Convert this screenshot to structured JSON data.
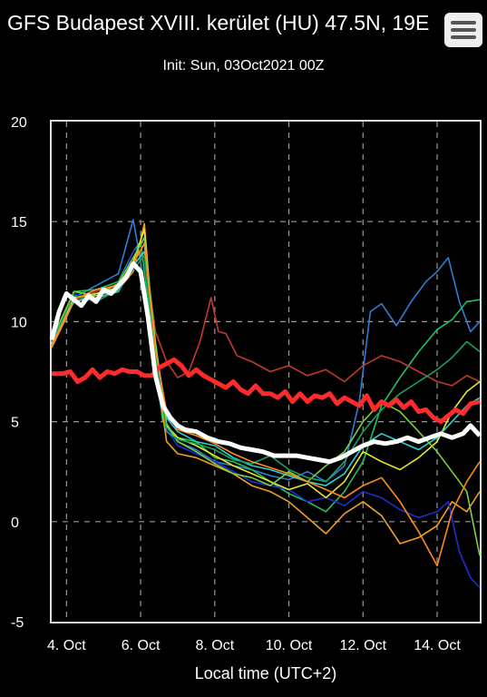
{
  "header": {
    "title": "GFS Budapest XVIII. kerület (HU) 47.5N, 19E",
    "init": "Init: Sun, 03Oct2021 00Z",
    "menu_icon": "hamburger-menu-icon"
  },
  "chart_data": {
    "type": "line",
    "title": "GFS Budapest XVIII. kerület (HU) 47.5N, 19E",
    "subtitle": "Init: Sun, 03Oct2021 00Z",
    "xlabel": "Local time (UTC+2)",
    "ylabel": "",
    "ylim": [
      -5,
      20
    ],
    "xlim": [
      3.6,
      15.15
    ],
    "yticks": [
      -5,
      0,
      5,
      10,
      15,
      20
    ],
    "xticks": [
      {
        "x": 4,
        "label": "4. Oct"
      },
      {
        "x": 6,
        "label": "6. Oct"
      },
      {
        "x": 8,
        "label": "8. Oct"
      },
      {
        "x": 10,
        "label": "10. Oct"
      },
      {
        "x": 12,
        "label": "12. Oct"
      },
      {
        "x": 14,
        "label": "14. Oct"
      }
    ],
    "grid": true,
    "series": [
      {
        "color": "#ff2a2a",
        "x": [
          3.6,
          3.9,
          4.1,
          4.3,
          4.5,
          4.7,
          4.9,
          5.1,
          5.3,
          5.5,
          5.7,
          5.9,
          6.1,
          6.3,
          6.5,
          6.7,
          6.9,
          7.1,
          7.3,
          7.5,
          7.7,
          7.9,
          8.1,
          8.3,
          8.5,
          8.7,
          8.9,
          9.1,
          9.3,
          9.5,
          9.7,
          9.9,
          10.1,
          10.3,
          10.5,
          10.7,
          10.9,
          11.1,
          11.3,
          11.5,
          11.7,
          11.9,
          12.1,
          12.3,
          12.5,
          12.7,
          12.9,
          13.1,
          13.3,
          13.5,
          13.7,
          13.9,
          14.1,
          14.3,
          14.5,
          14.7,
          14.9,
          15.15
        ],
        "values": [
          7.4,
          7.4,
          7.5,
          7.0,
          7.2,
          7.6,
          7.2,
          7.5,
          7.4,
          7.6,
          7.5,
          7.5,
          7.3,
          7.3,
          7.7,
          7.9,
          8.1,
          7.8,
          7.3,
          7.6,
          7.3,
          7.1,
          6.9,
          6.7,
          7.0,
          6.6,
          6.4,
          6.8,
          6.4,
          6.4,
          6.2,
          6.5,
          6.0,
          6.4,
          6.0,
          6.3,
          6.2,
          6.4,
          5.9,
          6.2,
          6.0,
          5.8,
          6.3,
          5.6,
          6.0,
          5.8,
          6.1,
          5.7,
          6.0,
          5.5,
          5.6,
          5.2,
          5.0,
          5.3,
          5.6,
          5.4,
          5.9,
          6.0
        ]
      },
      {
        "color": "#ffffff",
        "x": [
          3.6,
          3.8,
          4.0,
          4.2,
          4.4,
          4.6,
          4.8,
          5.0,
          5.2,
          5.4,
          5.6,
          5.8,
          6.0,
          6.2,
          6.4,
          6.6,
          6.8,
          7.0,
          7.2,
          7.5,
          7.8,
          8.1,
          8.4,
          8.7,
          9.0,
          9.3,
          9.6,
          9.9,
          10.2,
          10.5,
          10.8,
          11.1,
          11.4,
          11.7,
          12.0,
          12.3,
          12.6,
          12.9,
          13.2,
          13.5,
          13.8,
          14.1,
          14.4,
          14.7,
          14.9,
          15.15
        ],
        "values": [
          9.1,
          10.5,
          11.4,
          11.1,
          10.8,
          11.3,
          11.0,
          11.6,
          11.4,
          11.8,
          12.2,
          12.9,
          12.5,
          10.2,
          7.3,
          5.8,
          5.2,
          4.8,
          4.6,
          4.5,
          4.2,
          4.0,
          3.9,
          3.7,
          3.6,
          3.5,
          3.3,
          3.3,
          3.3,
          3.2,
          3.1,
          3.0,
          3.2,
          3.5,
          3.8,
          4.0,
          3.9,
          4.0,
          4.2,
          4.0,
          4.2,
          4.4,
          4.2,
          4.4,
          4.8,
          4.3
        ]
      },
      {
        "color": "#2b7fd6",
        "x": [
          3.6,
          4.2,
          4.8,
          5.4,
          5.8,
          6.0,
          6.3,
          6.6,
          7.0,
          7.5,
          8.0,
          8.5,
          9.0,
          9.5,
          10.0,
          10.5,
          11.0,
          11.5,
          11.9,
          12.2,
          12.5,
          12.9,
          13.3,
          13.7,
          14.0,
          14.3,
          14.6,
          14.9,
          15.15
        ],
        "values": [
          9.0,
          11.2,
          11.8,
          12.4,
          15.1,
          13.0,
          9.0,
          5.0,
          4.0,
          3.6,
          3.0,
          2.8,
          2.6,
          2.3,
          2.1,
          2.5,
          2.0,
          2.8,
          6.0,
          10.5,
          10.9,
          9.8,
          11.0,
          12.0,
          12.5,
          13.2,
          11.0,
          9.5,
          10.0
        ]
      },
      {
        "color": "#20c060",
        "x": [
          3.6,
          4.2,
          4.8,
          5.4,
          5.8,
          6.0,
          6.3,
          6.6,
          7.0,
          7.5,
          8.0,
          8.5,
          9.0,
          9.5,
          10.0,
          10.5,
          11.0,
          11.5,
          12.0,
          12.5,
          13.0,
          13.5,
          14.0,
          14.4,
          14.8,
          15.15
        ],
        "values": [
          8.8,
          11.5,
          11.6,
          12.0,
          13.5,
          14.0,
          9.5,
          5.0,
          4.2,
          4.0,
          3.2,
          3.0,
          2.6,
          2.0,
          1.4,
          1.0,
          0.5,
          1.5,
          3.0,
          5.8,
          7.2,
          8.5,
          9.6,
          10.1,
          11.0,
          11.1
        ]
      },
      {
        "color": "#f2a024",
        "x": [
          3.6,
          4.2,
          4.8,
          5.4,
          5.8,
          6.1,
          6.4,
          6.7,
          7.0,
          7.5,
          8.0,
          8.5,
          9.0,
          9.5,
          10.0,
          10.5,
          11.0,
          11.5,
          12.0,
          12.5,
          13.0,
          13.5,
          14.0,
          14.4,
          14.8,
          15.15
        ],
        "values": [
          8.7,
          11.0,
          11.3,
          11.6,
          12.5,
          14.9,
          8.0,
          4.0,
          3.4,
          3.2,
          2.8,
          2.4,
          1.8,
          1.5,
          1.0,
          0.2,
          -0.6,
          0.4,
          1.0,
          0.3,
          -1.1,
          -0.8,
          -0.2,
          1.0,
          0.5,
          1.5
        ]
      },
      {
        "color": "#1e2fd0",
        "x": [
          3.6,
          4.2,
          4.8,
          5.4,
          5.8,
          6.1,
          6.4,
          6.7,
          7.0,
          7.5,
          8.0,
          8.5,
          9.0,
          9.5,
          10.0,
          10.5,
          11.0,
          11.5,
          12.0,
          12.5,
          13.0,
          13.5,
          14.0,
          14.3,
          14.6,
          14.9,
          15.15
        ],
        "values": [
          9.0,
          11.4,
          11.0,
          11.8,
          13.5,
          14.0,
          8.5,
          4.6,
          3.8,
          3.4,
          3.0,
          2.5,
          2.0,
          1.8,
          1.6,
          1.0,
          1.2,
          0.8,
          1.5,
          1.2,
          0.6,
          0.2,
          0.5,
          1.0,
          -1.5,
          -2.8,
          -3.3
        ]
      },
      {
        "color": "#c13a2a",
        "x": [
          3.6,
          4.2,
          4.8,
          5.4,
          5.8,
          6.1,
          6.4,
          6.7,
          7.0,
          7.3,
          7.6,
          7.9,
          8.1,
          8.3,
          8.6,
          9.0,
          9.5,
          10.0,
          10.5,
          11.0,
          11.5,
          12.0,
          12.5,
          13.0,
          13.5,
          14.0,
          14.4,
          14.8,
          15.15
        ],
        "values": [
          9.0,
          11.0,
          11.5,
          11.9,
          12.8,
          13.5,
          9.5,
          8.0,
          7.2,
          7.5,
          9.0,
          11.2,
          9.5,
          9.4,
          8.3,
          8.0,
          7.5,
          7.8,
          7.3,
          7.6,
          7.0,
          7.8,
          8.3,
          8.0,
          7.5,
          7.0,
          6.8,
          7.3,
          7.0
        ]
      },
      {
        "color": "#e8e82a",
        "x": [
          3.6,
          4.2,
          4.8,
          5.4,
          5.8,
          6.1,
          6.4,
          6.7,
          7.0,
          7.5,
          8.0,
          8.5,
          9.0,
          9.5,
          10.0,
          10.5,
          11.0,
          11.5,
          12.0,
          12.5,
          13.0,
          13.5,
          14.0,
          14.4,
          14.8,
          15.15
        ],
        "values": [
          8.9,
          11.2,
          11.4,
          11.7,
          13.0,
          14.6,
          8.0,
          4.8,
          4.2,
          3.8,
          3.3,
          2.8,
          2.4,
          2.0,
          1.6,
          1.9,
          1.2,
          2.0,
          3.5,
          3.0,
          2.6,
          3.2,
          4.0,
          5.5,
          6.5,
          7.0
        ]
      },
      {
        "color": "#2fd0d0",
        "x": [
          3.6,
          4.2,
          4.8,
          5.4,
          5.8,
          6.1,
          6.4,
          6.7,
          7.0,
          7.5,
          8.0,
          8.5,
          9.0,
          9.5,
          10.0,
          10.5,
          11.0,
          11.5,
          12.0,
          12.5,
          13.0,
          13.5,
          14.0,
          14.4,
          14.8,
          15.15
        ],
        "values": [
          9.0,
          11.0,
          11.2,
          11.5,
          12.8,
          13.5,
          8.8,
          5.2,
          4.5,
          4.0,
          3.8,
          3.2,
          2.8,
          2.6,
          2.3,
          2.0,
          1.8,
          2.4,
          3.8,
          4.4,
          4.0,
          3.6,
          4.2,
          5.0,
          5.8,
          6.2
        ]
      },
      {
        "color": "#7ad03a",
        "x": [
          3.6,
          4.2,
          4.8,
          5.4,
          5.8,
          6.1,
          6.4,
          6.7,
          7.0,
          7.5,
          8.0,
          8.5,
          9.0,
          9.5,
          10.0,
          10.5,
          11.0,
          11.5,
          12.0,
          12.5,
          13.0,
          13.5,
          14.0,
          14.4,
          14.8,
          15.15
        ],
        "values": [
          9.1,
          11.5,
          11.3,
          11.9,
          13.2,
          14.2,
          9.0,
          4.9,
          4.0,
          3.5,
          2.9,
          2.4,
          2.2,
          1.8,
          2.5,
          2.0,
          2.8,
          3.5,
          5.0,
          6.0,
          5.5,
          4.5,
          3.5,
          2.5,
          1.5,
          -1.7
        ]
      },
      {
        "color": "#19a35a",
        "x": [
          3.6,
          4.2,
          4.8,
          5.4,
          5.8,
          6.1,
          6.4,
          6.7,
          7.0,
          7.5,
          8.0,
          8.5,
          9.0,
          9.5,
          10.0,
          10.5,
          11.0,
          11.5,
          12.0,
          12.5,
          13.0,
          13.5,
          14.0,
          14.4,
          14.8,
          15.15
        ],
        "values": [
          9.0,
          11.3,
          11.0,
          11.6,
          12.6,
          13.3,
          8.2,
          4.5,
          4.1,
          3.9,
          3.6,
          3.1,
          2.9,
          3.3,
          2.6,
          2.2,
          2.0,
          3.0,
          4.5,
          5.6,
          6.4,
          7.0,
          7.6,
          8.2,
          9.0,
          8.5
        ]
      },
      {
        "color": "#ff8c1a",
        "x": [
          3.6,
          4.2,
          4.8,
          5.4,
          5.8,
          6.1,
          6.4,
          6.7,
          7.0,
          7.5,
          8.0,
          8.5,
          9.0,
          9.5,
          10.0,
          10.5,
          11.0,
          11.5,
          12.0,
          12.5,
          13.0,
          13.5,
          14.0,
          14.4,
          14.8,
          15.15
        ],
        "values": [
          8.8,
          11.1,
          11.6,
          11.8,
          12.9,
          13.9,
          8.6,
          5.5,
          4.6,
          4.3,
          3.9,
          3.4,
          3.0,
          2.7,
          2.4,
          2.0,
          1.6,
          1.2,
          1.8,
          2.2,
          1.0,
          -0.5,
          -2.2,
          0.5,
          2.0,
          3.0
        ]
      }
    ]
  }
}
